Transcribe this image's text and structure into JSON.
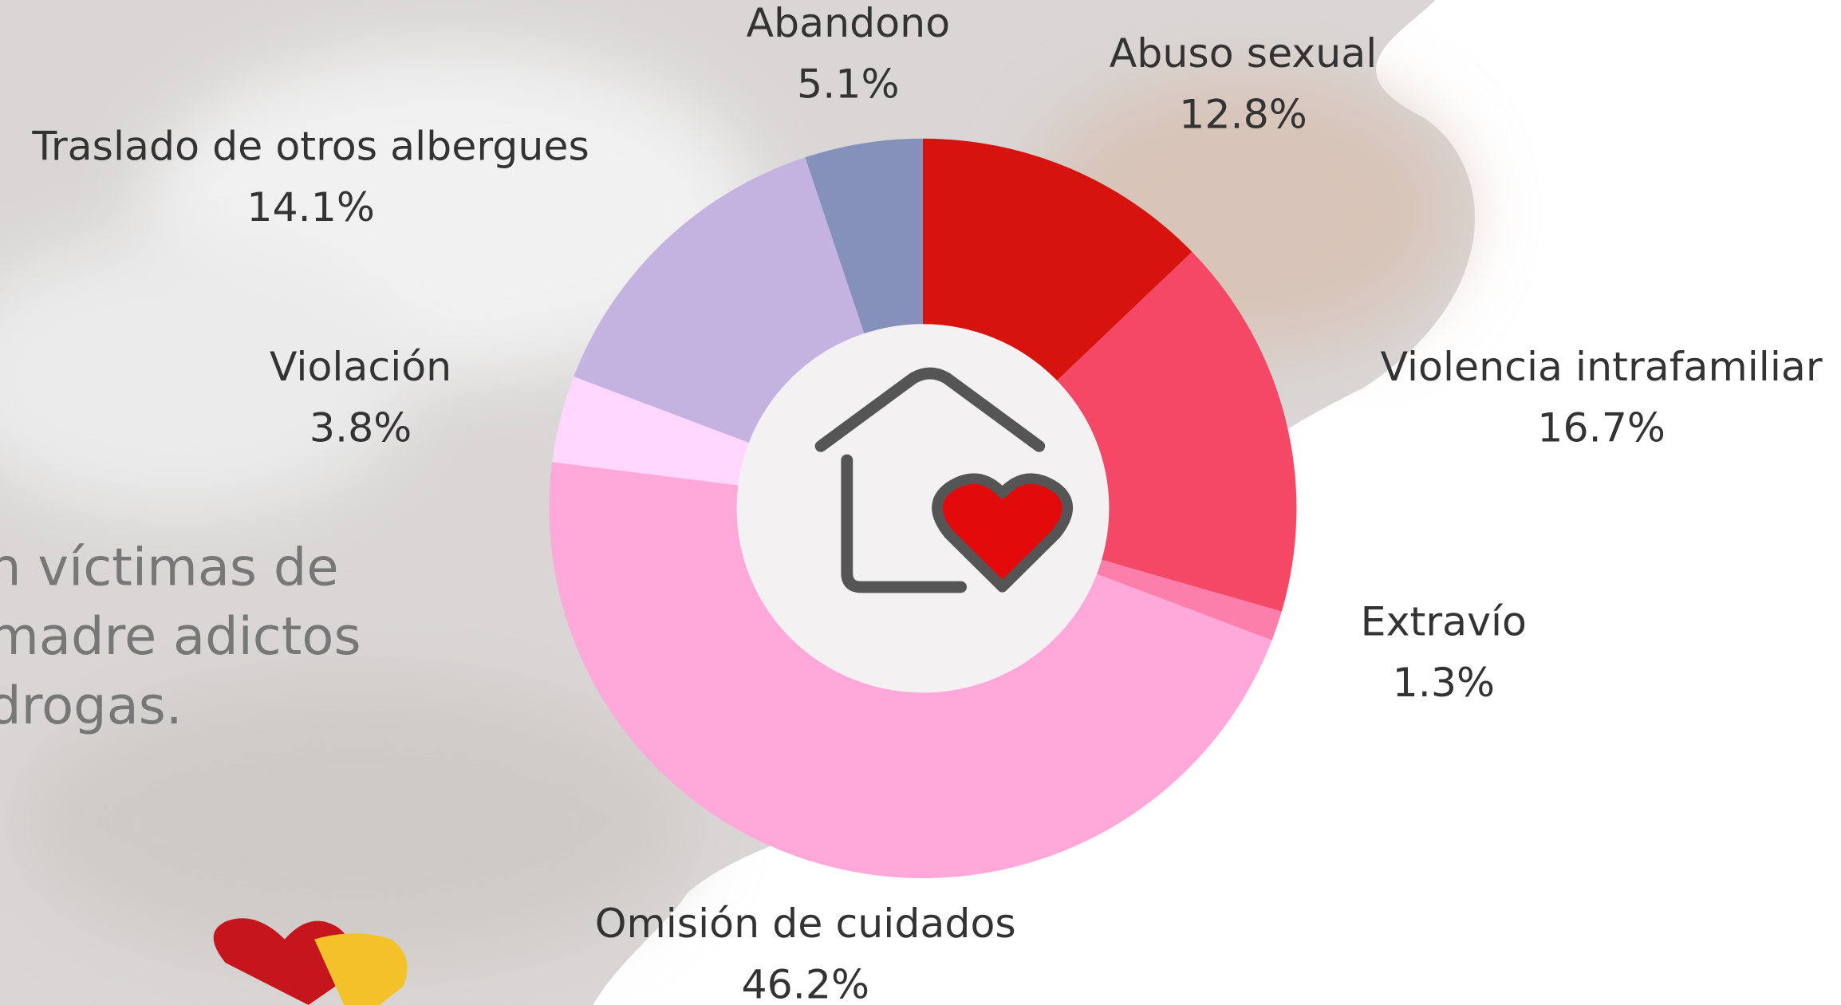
{
  "chart_data": {
    "type": "pie",
    "categories": [
      "Abuso sexual",
      "Violencia intrafamiliar",
      "Extravío",
      "Omisión de cuidados",
      "Violación",
      "Traslado de otros albergues",
      "Abandono"
    ],
    "values": [
      12.8,
      16.7,
      1.3,
      46.2,
      3.8,
      14.1,
      5.1
    ],
    "value_labels": [
      "12.8%",
      "16.7%",
      "1.3%",
      "46.2%",
      "3.8%",
      "14.1%",
      "5.1%"
    ],
    "colors": [
      "#d7130f",
      "#f44866",
      "#fc7eaa",
      "#ffa8d9",
      "#ffd6fd",
      "#c4b3e0",
      "#8591bb"
    ],
    "annotations": [
      "n víctimas de",
      "madre adictos",
      "drogas."
    ]
  }
}
